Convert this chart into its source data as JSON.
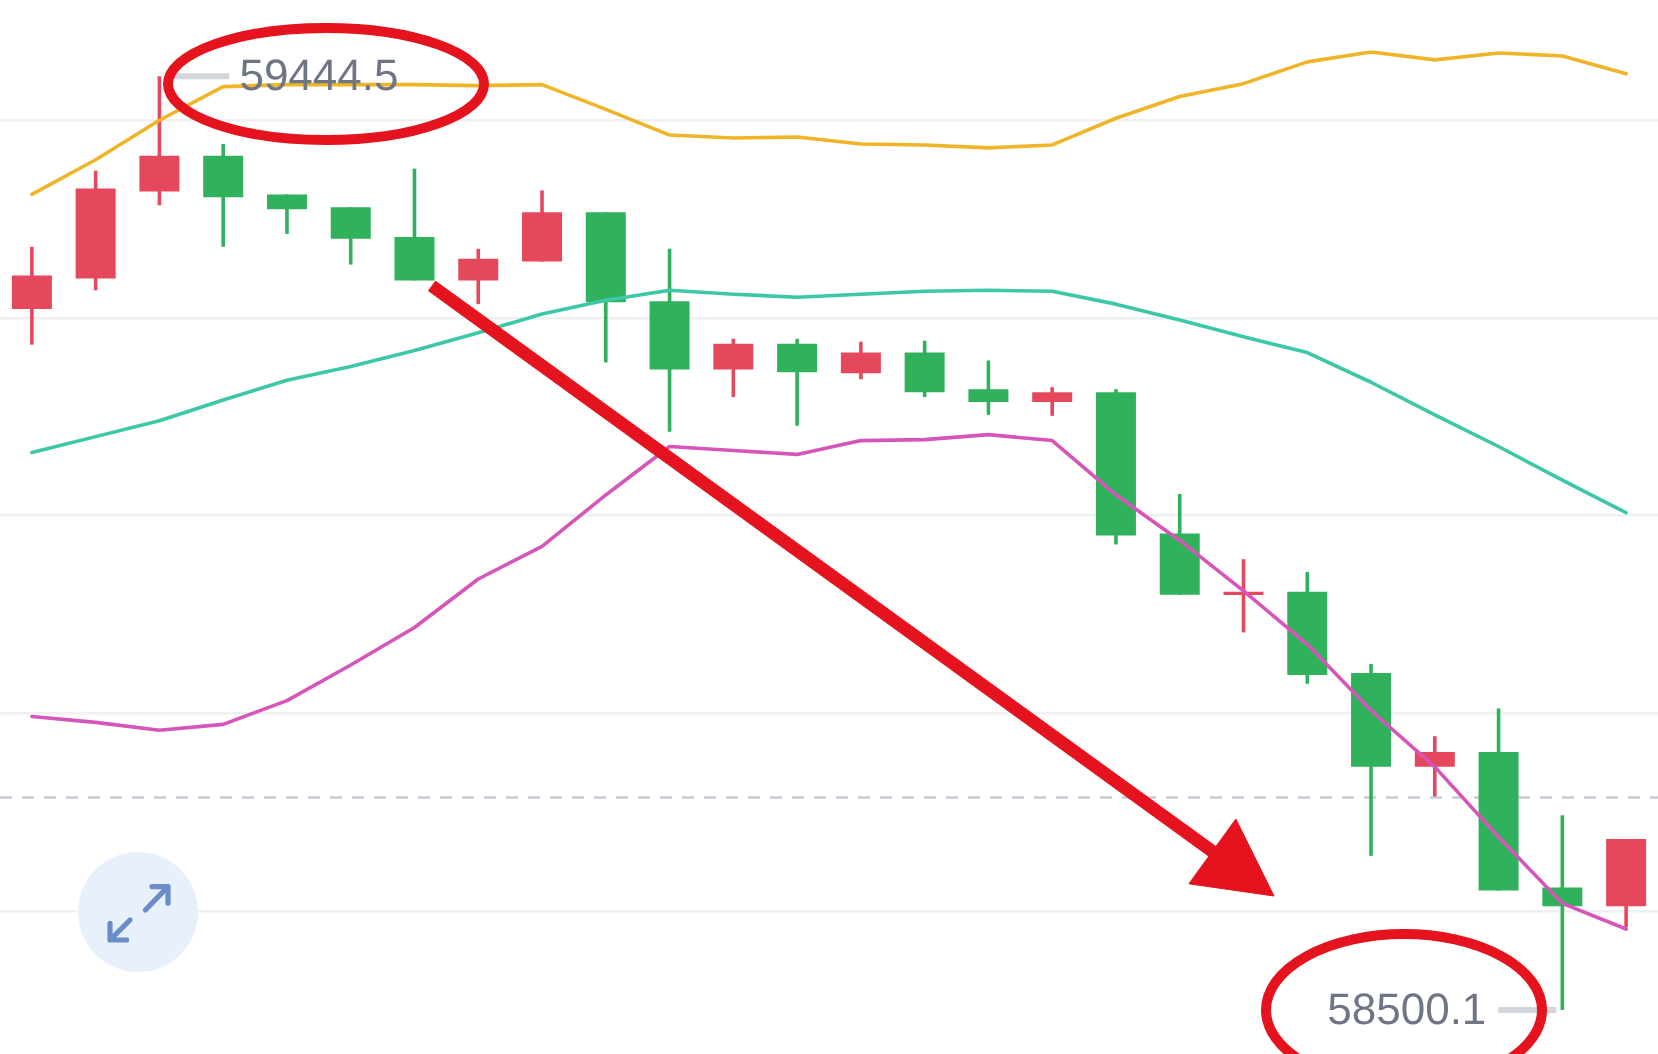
{
  "chart_data": {
    "type": "candlestick",
    "categories": [
      null,
      null,
      null,
      null,
      null,
      null,
      null,
      null,
      null,
      null,
      null,
      null,
      null,
      null,
      null,
      null,
      null,
      null,
      null,
      null,
      null,
      null,
      null,
      null,
      null,
      null
    ],
    "ohlc": [
      [
        59209,
        59272,
        59173,
        59243
      ],
      [
        59240,
        59349,
        59228,
        59331
      ],
      [
        59328,
        59444.5,
        59314,
        59364
      ],
      [
        59364,
        59376,
        59272,
        59322
      ],
      [
        59325,
        59325,
        59285,
        59310
      ],
      [
        59312,
        59312,
        59254,
        59280
      ],
      [
        59282,
        59351,
        59238,
        59238
      ],
      [
        59238,
        59270,
        59214,
        59260
      ],
      [
        59257,
        59329,
        59257,
        59307
      ],
      [
        59307,
        59307,
        59155,
        59216
      ],
      [
        59217,
        59270,
        59085,
        59148
      ],
      [
        59148,
        59179,
        59120,
        59174
      ],
      [
        59174,
        59179,
        59091,
        59145
      ],
      [
        59144,
        59176,
        59138,
        59165
      ],
      [
        59165,
        59177,
        59120,
        59125
      ],
      [
        59128,
        59157,
        59102,
        59115
      ],
      [
        59115,
        59130,
        59101,
        59125
      ],
      [
        59125,
        59128,
        58971,
        58980
      ],
      [
        58982,
        59022,
        58920,
        58920
      ],
      [
        58920,
        58956,
        58882,
        58923
      ],
      [
        58923,
        58943,
        58830,
        58839
      ],
      [
        58841,
        58850,
        58656,
        58746
      ],
      [
        58746,
        58777,
        58716,
        58761
      ],
      [
        58761,
        58805,
        58621,
        58621
      ],
      [
        58624,
        58697,
        58500.1,
        58605
      ],
      [
        58605,
        58673,
        58584,
        58673
      ]
    ],
    "colors": [
      "#e5485c",
      "#e5485c",
      "#e5485c",
      "#2fb25b",
      "#2fb25b",
      "#2fb25b",
      "#2fb25b",
      "#e5485c",
      "#e5485c",
      "#2fb25b",
      "#2fb25b",
      "#e5485c",
      "#2fb25b",
      "#e5485c",
      "#2fb25b",
      "#2fb25b",
      "#e5485c",
      "#2fb25b",
      "#2fb25b",
      "#e5485c",
      "#2fb25b",
      "#2fb25b",
      "#e5485c",
      "#2fb25b",
      "#2fb25b",
      "#e5485c"
    ],
    "series": [
      {
        "type": "line",
        "color": "#f0b429",
        "values": [
          59325,
          59360,
          59400,
          59434,
          59436,
          59436,
          59436,
          59435,
          59436,
          59411,
          59385,
          59382,
          59383,
          59376,
          59375,
          59372,
          59375,
          59402,
          59424,
          59437,
          59459,
          59469,
          59461,
          59468,
          59465,
          59447
        ]
      },
      {
        "type": "line",
        "color": "#3cc8a8",
        "values": [
          59064,
          59080,
          59096,
          59117,
          59137,
          59151,
          59167,
          59185,
          59204,
          59218,
          59228,
          59224,
          59221,
          59224,
          59227,
          59228,
          59227,
          59214,
          59198,
          59181,
          59165,
          59135,
          59102,
          59070,
          59036,
          59003
        ]
      },
      {
        "type": "line",
        "color": "#d556b8",
        "values": [
          58797,
          58791,
          58783,
          58789,
          58813,
          58849,
          58887,
          58936,
          58969,
          59021,
          59070,
          59066,
          59062,
          59076,
          59077,
          59082,
          59076,
          59021,
          58975,
          58924,
          58870,
          58803,
          58746,
          58675,
          58608,
          58582
        ]
      }
    ],
    "yticks": [
      {
        "value": 58600,
        "label": null
      },
      {
        "value": 58800,
        "label": null
      },
      {
        "value": 59000,
        "label": null
      },
      {
        "value": 59200,
        "label": null
      },
      {
        "value": 59400,
        "label": null
      }
    ],
    "tick_labels": false,
    "grid": "y",
    "marker": "none",
    "ref_lines": [
      {
        "axis": "y",
        "value": 58715,
        "color": "#c8ccd4",
        "line_style": "dashed"
      }
    ],
    "annotations": [
      {
        "text": "59444.5",
        "y": 59444.5
      },
      "58500.1"
    ]
  }
}
